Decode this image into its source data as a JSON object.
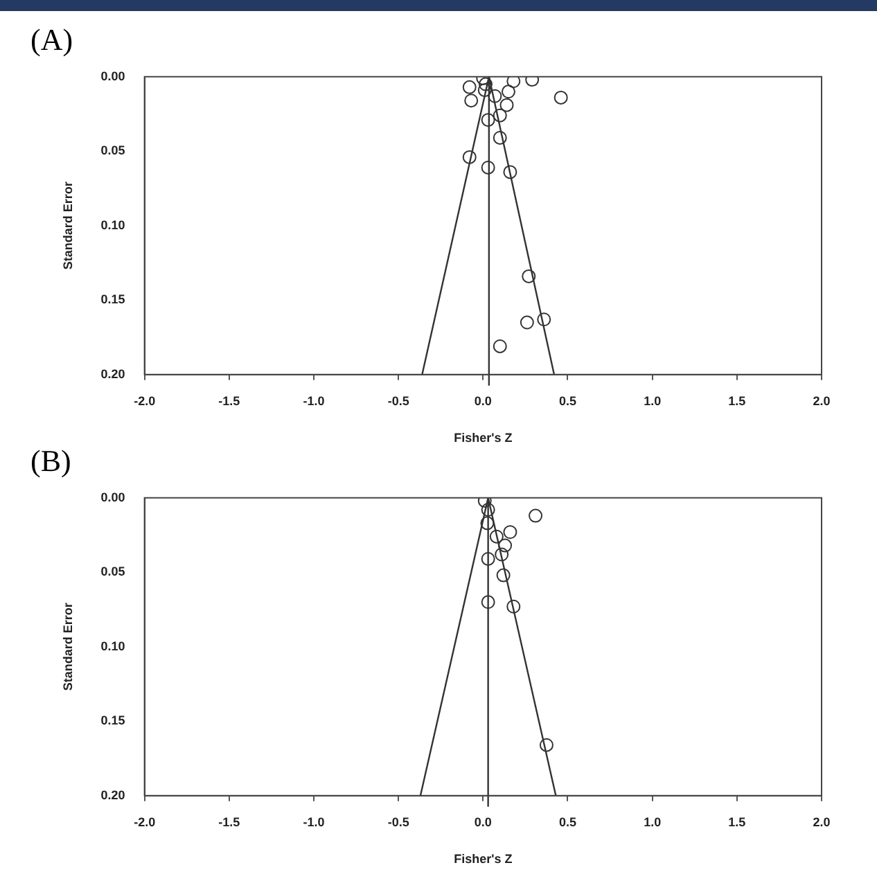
{
  "chart_data": [
    {
      "type": "scatter",
      "title": "(A)",
      "xlabel": "Fisher's Z",
      "ylabel": "Standard Error",
      "xlim": [
        -2.0,
        2.0
      ],
      "ylim": [
        0.2,
        0.0
      ],
      "xticks": [
        {
          "value": -2,
          "label": "-2.0"
        },
        {
          "value": -1.5,
          "label": "-1.5"
        },
        {
          "value": -1,
          "label": "-1.0"
        },
        {
          "value": -0.5,
          "label": "-0.5"
        },
        {
          "value": 0,
          "label": "0.0"
        },
        {
          "value": 0.5,
          "label": "0.5"
        },
        {
          "value": 1,
          "label": "1.0"
        },
        {
          "value": 1.5,
          "label": "1.5"
        },
        {
          "value": 2,
          "label": "2.0"
        }
      ],
      "yticks": [
        {
          "value": 0,
          "label": "0.00"
        },
        {
          "value": 0.05,
          "label": "0.05"
        },
        {
          "value": 0.1,
          "label": "0.10"
        },
        {
          "value": 0.15,
          "label": "0.15"
        },
        {
          "value": 0.2,
          "label": "0.20"
        }
      ],
      "ref_lines": [
        {
          "axis": "x",
          "value": 0.035,
          "color": "#333333"
        }
      ],
      "series": [
        {
          "type": "scatter",
          "marker": "circle",
          "color": "#333333",
          "x": [
            0.0,
            0.015,
            0.01,
            -0.08,
            -0.07,
            0.07,
            0.15,
            0.18,
            0.29,
            0.46,
            0.14,
            0.03,
            0.1,
            0.1,
            -0.08,
            0.03,
            0.16,
            0.27,
            0.26,
            0.36,
            0.1
          ],
          "values": [
            0.001,
            0.005,
            0.009,
            0.007,
            0.016,
            0.013,
            0.01,
            0.003,
            0.002,
            0.014,
            0.019,
            0.029,
            0.026,
            0.041,
            0.054,
            0.061,
            0.064,
            0.134,
            0.165,
            0.163,
            0.181
          ]
        },
        {
          "type": "line",
          "marker": "none",
          "color": "#333333",
          "x": [
            -0.36,
            0.035,
            0.42
          ],
          "values": [
            0.2,
            0.0,
            0.2
          ]
        }
      ]
    },
    {
      "type": "scatter",
      "title": "(B)",
      "xlabel": "Fisher's Z",
      "ylabel": "Standard Error",
      "xlim": [
        -2.0,
        2.0
      ],
      "ylim": [
        0.2,
        0.0
      ],
      "xticks": [
        {
          "value": -2,
          "label": "-2.0"
        },
        {
          "value": -1.5,
          "label": "-1.5"
        },
        {
          "value": -1,
          "label": "-1.0"
        },
        {
          "value": -0.5,
          "label": "-0.5"
        },
        {
          "value": 0,
          "label": "0.0"
        },
        {
          "value": 0.5,
          "label": "0.5"
        },
        {
          "value": 1,
          "label": "1.0"
        },
        {
          "value": 1.5,
          "label": "1.5"
        },
        {
          "value": 2,
          "label": "2.0"
        }
      ],
      "yticks": [
        {
          "value": 0,
          "label": "0.00"
        },
        {
          "value": 0.05,
          "label": "0.05"
        },
        {
          "value": 0.1,
          "label": "0.10"
        },
        {
          "value": 0.15,
          "label": "0.15"
        },
        {
          "value": 0.2,
          "label": "0.20"
        }
      ],
      "ref_lines": [
        {
          "axis": "x",
          "value": 0.03,
          "color": "#333333"
        }
      ],
      "series": [
        {
          "type": "scatter",
          "marker": "circle",
          "color": "#333333",
          "x": [
            0.01,
            0.03,
            0.025,
            0.31,
            0.08,
            0.16,
            0.13,
            0.11,
            0.03,
            0.12,
            0.03,
            0.18,
            0.375
          ],
          "values": [
            0.002,
            0.008,
            0.017,
            0.012,
            0.026,
            0.023,
            0.032,
            0.038,
            0.041,
            0.052,
            0.07,
            0.073,
            0.166
          ]
        },
        {
          "type": "line",
          "marker": "none",
          "color": "#333333",
          "x": [
            -0.37,
            0.03,
            0.43
          ],
          "values": [
            0.2,
            0.0,
            0.2
          ]
        }
      ]
    }
  ]
}
